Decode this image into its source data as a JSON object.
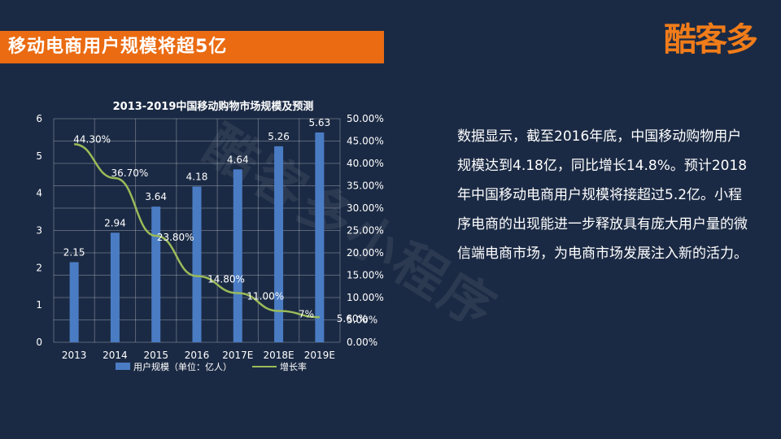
{
  "header": {
    "title": "移动电商用户规模将超5亿",
    "logo_text": "酷客多"
  },
  "watermark": "酷客多小程序",
  "description": "数据显示，截至2016年底，中国移动购物用户规模达到4.18亿，同比增长14.8%。预计2018年中国移动电商用户规模将接超过5.2亿。小程序电商的出现能进一步释放具有庞大用户量的微信端电商市场，为电商市场发展注入新的活力。",
  "colors": {
    "background": "#1b2a44",
    "title_bar": "#ea6b12",
    "bar": "#4a7cc4",
    "line": "#9bbb59"
  },
  "chart_data": {
    "type": "bar",
    "title": "2013-2019中国移动购物市场规模及预测",
    "categories": [
      "2013",
      "2014",
      "2015",
      "2016",
      "2017E",
      "2018E",
      "2019E"
    ],
    "series": [
      {
        "name": "用户规模（单位：亿人）",
        "type": "bar",
        "axis": "left",
        "values": [
          2.15,
          2.94,
          3.64,
          4.18,
          4.64,
          5.26,
          5.63
        ],
        "labels": [
          "2.15",
          "2.94",
          "3.64",
          "4.18",
          "4.64",
          "5.26",
          "5.63"
        ]
      },
      {
        "name": "增长率",
        "type": "line",
        "axis": "right",
        "values": [
          44.3,
          36.7,
          23.8,
          14.8,
          11.0,
          7.0,
          5.6
        ],
        "labels": [
          "44.30%",
          "36.70%",
          "23.80%",
          "14.80%",
          "11.00%",
          "7%",
          "5.60%"
        ]
      }
    ],
    "y_left": {
      "ylim": [
        0,
        6
      ],
      "ticks": [
        "0",
        "1",
        "2",
        "3",
        "4",
        "5",
        "6"
      ]
    },
    "y_right": {
      "ylim": [
        0,
        50
      ],
      "ticks": [
        "0.00%",
        "5.00%",
        "10.00%",
        "15.00%",
        "20.00%",
        "25.00%",
        "30.00%",
        "35.00%",
        "40.00%",
        "45.00%",
        "50.00%"
      ]
    },
    "grid": true,
    "legend_position": "bottom"
  }
}
